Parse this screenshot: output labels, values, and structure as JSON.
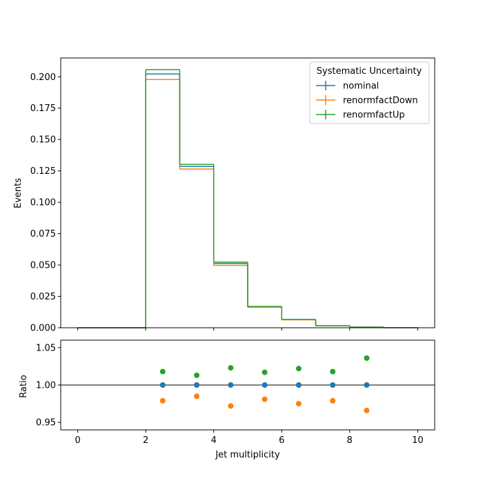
{
  "chart_data": [
    {
      "type": "line",
      "panel": "main",
      "ylabel": "Events",
      "xlim": [
        -0.5,
        10.5
      ],
      "ylim": [
        0.0,
        0.215
      ],
      "x_ticks": [
        0,
        2,
        4,
        6,
        8,
        10
      ],
      "y_ticks": [
        0.0,
        0.025,
        0.05,
        0.075,
        0.1,
        0.125,
        0.15,
        0.175,
        0.2
      ],
      "y_tick_labels": [
        "0.000",
        "0.025",
        "0.050",
        "0.075",
        "0.100",
        "0.125",
        "0.150",
        "0.175",
        "0.200"
      ],
      "bin_edges": [
        0,
        1,
        2,
        3,
        4,
        5,
        6,
        7,
        8,
        9,
        10
      ],
      "series": [
        {
          "name": "nominal",
          "color": "#1f77b4",
          "values": [
            0.0,
            0.0,
            0.2022,
            0.1285,
            0.0512,
            0.0167,
            0.0065,
            0.0016,
            0.0005,
            0.0001
          ]
        },
        {
          "name": "renormfactDown",
          "color": "#ff7f0e",
          "values": [
            0.0,
            0.0,
            0.1978,
            0.1265,
            0.0497,
            0.0163,
            0.0063,
            0.0016,
            0.0005,
            0.0001
          ]
        },
        {
          "name": "renormfactUp",
          "color": "#2ca02c",
          "values": [
            0.0,
            0.0,
            0.2057,
            0.1302,
            0.0523,
            0.017,
            0.0066,
            0.0016,
            0.0005,
            0.0001
          ]
        }
      ],
      "legend": {
        "title": "Systematic Uncertainty",
        "placement": "upper right"
      }
    },
    {
      "type": "scatter",
      "panel": "ratio",
      "xlabel": "Jet multiplicity",
      "ylabel": "Ratio",
      "xlim": [
        -0.5,
        10.5
      ],
      "ylim": [
        0.94,
        1.06
      ],
      "x_ticks": [
        0,
        2,
        4,
        6,
        8,
        10
      ],
      "x_tick_labels": [
        "0",
        "2",
        "4",
        "6",
        "8",
        "10"
      ],
      "y_ticks": [
        0.95,
        1.0,
        1.05
      ],
      "y_tick_labels": [
        "0.95",
        "1.00",
        "1.05"
      ],
      "reference_line": 1.0,
      "x": [
        2.5,
        3.5,
        4.5,
        5.5,
        6.5,
        7.5,
        8.5
      ],
      "series": [
        {
          "name": "nominal",
          "color": "#1f77b4",
          "values": [
            1.0,
            1.0,
            1.0,
            1.0,
            1.0,
            1.0,
            1.0
          ]
        },
        {
          "name": "renormfactDown",
          "color": "#ff7f0e",
          "values": [
            0.979,
            0.985,
            0.972,
            0.981,
            0.975,
            0.979,
            0.966
          ]
        },
        {
          "name": "renormfactUp",
          "color": "#2ca02c",
          "values": [
            1.018,
            1.013,
            1.023,
            1.017,
            1.022,
            1.018,
            1.036
          ]
        }
      ]
    }
  ]
}
